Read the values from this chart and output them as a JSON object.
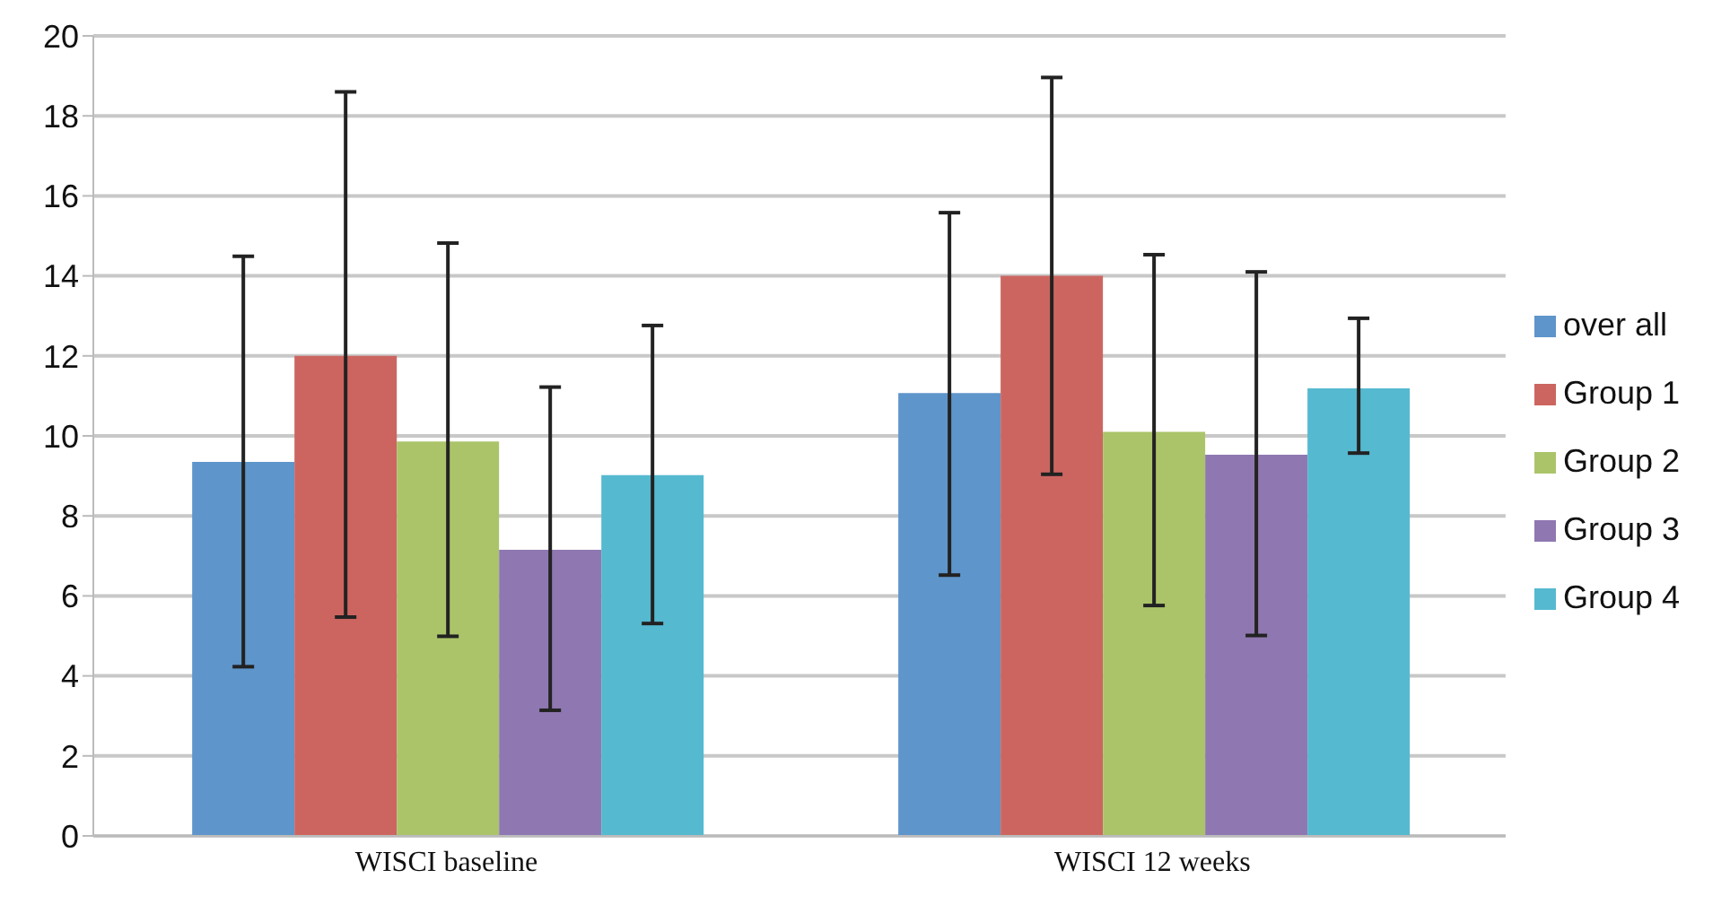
{
  "chart_data": {
    "type": "bar",
    "categories": [
      "WISCI baseline",
      "WISCI 12 weeks"
    ],
    "series": [
      {
        "name": "over all",
        "color": "#5e95ca",
        "values": [
          9.35,
          11.07
        ],
        "errors": [
          [
            4.23,
            14.49
          ],
          [
            6.52,
            15.58
          ]
        ]
      },
      {
        "name": "Group 1",
        "color": "#cc6560",
        "values": [
          12.0,
          14.0
        ],
        "errors": [
          [
            5.47,
            18.6
          ],
          [
            9.04,
            18.96
          ]
        ]
      },
      {
        "name": "Group 2",
        "color": "#abc46a",
        "values": [
          9.86,
          10.1
        ],
        "errors": [
          [
            4.99,
            14.82
          ],
          [
            5.76,
            14.53
          ]
        ]
      },
      {
        "name": "Group 3",
        "color": "#8f78b1",
        "values": [
          7.15,
          9.53
        ],
        "errors": [
          [
            3.14,
            11.22
          ],
          [
            5.01,
            14.1
          ]
        ]
      },
      {
        "name": "Group 4",
        "color": "#55b9d0",
        "values": [
          9.02,
          11.19
        ],
        "errors": [
          [
            5.31,
            12.76
          ],
          [
            9.57,
            12.94
          ]
        ]
      }
    ],
    "ylim": [
      0,
      20
    ],
    "yticks": [
      0,
      2,
      4,
      6,
      8,
      10,
      12,
      14,
      16,
      18,
      20
    ],
    "grid": "y",
    "legend": "right"
  }
}
